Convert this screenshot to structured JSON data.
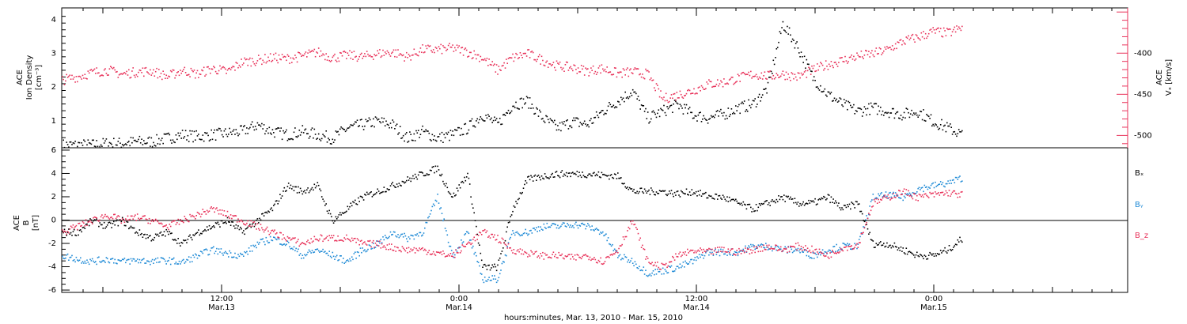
{
  "colors": {
    "density": "#000000",
    "vx": "#e8325a",
    "bx": "#000000",
    "by": "#1f8ad6",
    "bz": "#e8325a"
  },
  "chart_data": [
    {
      "type": "scatter",
      "panel": "top",
      "left_axis": {
        "label_line1": "ACE",
        "label_line2": "Ion Density",
        "unit": "[cm⁻³]",
        "ylim": [
          0.2,
          4.35
        ],
        "ticks": [
          "1",
          "2",
          "3",
          "4"
        ]
      },
      "right_axis": {
        "label_line1": "ACE",
        "label_line2": "Vₓ [km/s]",
        "ylim": [
          -515,
          -345
        ],
        "ticks": [
          "-400",
          "-450",
          "-500"
        ]
      },
      "series": [
        {
          "name": "Ion Density",
          "x": [
            0,
            1,
            2,
            3,
            4,
            5,
            6,
            7,
            8,
            9,
            10,
            11,
            12,
            13,
            14,
            15,
            16,
            17,
            18,
            19,
            20,
            21,
            22,
            23,
            24,
            25,
            26,
            27,
            28,
            29,
            30,
            31,
            32,
            33,
            34,
            35,
            36,
            37,
            38,
            39,
            40,
            41,
            42,
            43,
            44,
            45,
            46,
            47,
            48,
            49,
            50,
            51,
            52,
            53,
            54,
            55,
            56,
            57,
            58,
            59,
            60
          ],
          "y": [
            0.3,
            0.3,
            0.3,
            0.35,
            0.35,
            0.4,
            0.4,
            0.5,
            0.6,
            0.55,
            0.6,
            0.65,
            0.7,
            0.9,
            0.7,
            0.6,
            0.7,
            0.6,
            0.5,
            0.8,
            0.9,
            1.0,
            0.9,
            0.5,
            0.7,
            0.5,
            0.6,
            0.8,
            1.2,
            0.9,
            1.5,
            1.6,
            1.1,
            0.8,
            1.0,
            0.9,
            1.3,
            1.6,
            1.9,
            1.1,
            1.3,
            1.5,
            1.2,
            1.1,
            1.2,
            1.4,
            1.5,
            2.0,
            3.9,
            3.2,
            2.3,
            1.8,
            1.5,
            1.3,
            1.4,
            1.3,
            1.2,
            1.3,
            1.0,
            0.8,
            0.6
          ]
        },
        {
          "name": "Vx",
          "x": [
            0,
            1,
            2,
            3,
            4,
            5,
            6,
            7,
            8,
            9,
            10,
            11,
            12,
            13,
            14,
            15,
            16,
            17,
            18,
            19,
            20,
            21,
            22,
            23,
            24,
            25,
            26,
            27,
            28,
            29,
            30,
            31,
            32,
            33,
            34,
            35,
            36,
            37,
            38,
            39,
            40,
            41,
            42,
            43,
            44,
            45,
            46,
            47,
            48,
            49,
            50,
            51,
            52,
            53,
            54,
            55,
            56,
            57,
            58,
            59,
            60
          ],
          "y": [
            -432,
            -428,
            -423,
            -420,
            -425,
            -422,
            -421,
            -428,
            -420,
            -425,
            -418,
            -422,
            -410,
            -408,
            -405,
            -406,
            -403,
            -398,
            -405,
            -402,
            -404,
            -400,
            -398,
            -404,
            -395,
            -395,
            -393,
            -398,
            -405,
            -420,
            -405,
            -400,
            -408,
            -415,
            -417,
            -421,
            -418,
            -424,
            -422,
            -425,
            -455,
            -450,
            -445,
            -437,
            -435,
            -430,
            -425,
            -427,
            -425,
            -428,
            -420,
            -413,
            -408,
            -403,
            -400,
            -395,
            -385,
            -380,
            -373,
            -375,
            -368
          ]
        }
      ]
    },
    {
      "type": "scatter",
      "panel": "bottom",
      "left_axis": {
        "label_line1": "ACE",
        "label_line2": "B",
        "unit": "[nT]",
        "ylim": [
          -6.2,
          6.2
        ],
        "ticks": [
          "6",
          "4",
          "2",
          "0",
          "-2",
          "-4",
          "-6"
        ]
      },
      "legend": [
        {
          "name": "Bₓ",
          "key": "bx"
        },
        {
          "name": "Bᵧ",
          "key": "by"
        },
        {
          "name": "B_z",
          "key": "bz"
        }
      ],
      "series": [
        {
          "name": "Bx",
          "x": [
            0,
            1,
            2,
            3,
            4,
            5,
            6,
            7,
            8,
            9,
            10,
            11,
            12,
            13,
            14,
            15,
            16,
            17,
            18,
            19,
            20,
            21,
            22,
            23,
            24,
            25,
            26,
            27,
            28,
            29,
            30,
            31,
            32,
            33,
            34,
            35,
            36,
            37,
            38,
            39,
            40,
            41,
            42,
            43,
            44,
            45,
            46,
            47,
            48,
            49,
            50,
            51,
            52,
            53,
            54,
            55,
            56,
            57,
            58,
            59,
            60
          ],
          "y": [
            -1,
            -1,
            0,
            -0.5,
            0,
            -1,
            -1.5,
            -1,
            -2,
            -1,
            -0.5,
            0,
            -1,
            0,
            1,
            3,
            2.5,
            3,
            0,
            1,
            2,
            2.5,
            3,
            3.5,
            4,
            4.5,
            2,
            4,
            -4,
            -4,
            1,
            3.5,
            3.8,
            4,
            4,
            4,
            3.9,
            3.8,
            2.5,
            2.5,
            2.5,
            2.3,
            2.5,
            2.1,
            2,
            1.5,
            1,
            1.5,
            2,
            1.5,
            1.5,
            2,
            1,
            1.5,
            -2,
            -2,
            -2.5,
            -3,
            -3,
            -2.5,
            -1.5
          ]
        },
        {
          "name": "By",
          "x": [
            0,
            1,
            2,
            3,
            4,
            5,
            6,
            7,
            8,
            9,
            10,
            11,
            12,
            13,
            14,
            15,
            16,
            17,
            18,
            19,
            20,
            21,
            22,
            23,
            24,
            25,
            26,
            27,
            28,
            29,
            30,
            31,
            32,
            33,
            34,
            35,
            36,
            37,
            38,
            39,
            40,
            41,
            42,
            43,
            44,
            45,
            46,
            47,
            48,
            49,
            50,
            51,
            52,
            53,
            54,
            55,
            56,
            57,
            58,
            59,
            60
          ],
          "y": [
            -3,
            -3.3,
            -3.5,
            -3.3,
            -3.5,
            -3.4,
            -3.5,
            -3.4,
            -3.6,
            -3,
            -2.5,
            -2.8,
            -3,
            -2,
            -1.5,
            -2,
            -3,
            -2.5,
            -3,
            -3.5,
            -2.5,
            -2,
            -1,
            -1.5,
            -1,
            2,
            -3,
            -1,
            -5,
            -5,
            -1,
            -1,
            -0.5,
            -0.5,
            -0.3,
            -0.5,
            -1,
            -3,
            -3.5,
            -4.5,
            -4.3,
            -4,
            -3.5,
            -2.7,
            -2.7,
            -2.7,
            -2.2,
            -2.2,
            -2.5,
            -2.5,
            -3,
            -2.5,
            -2.2,
            -2.2,
            2,
            2.2,
            2,
            2.7,
            3,
            3.2,
            3.7
          ]
        },
        {
          "name": "Bz",
          "x": [
            0,
            1,
            2,
            3,
            4,
            5,
            6,
            7,
            8,
            9,
            10,
            11,
            12,
            13,
            14,
            15,
            16,
            17,
            18,
            19,
            20,
            21,
            22,
            23,
            24,
            25,
            26,
            27,
            28,
            29,
            30,
            31,
            32,
            33,
            34,
            35,
            36,
            37,
            38,
            39,
            40,
            41,
            42,
            43,
            44,
            45,
            46,
            47,
            48,
            49,
            50,
            51,
            52,
            53,
            54,
            55,
            56,
            57,
            58,
            59,
            60
          ],
          "y": [
            -1,
            -0.5,
            0,
            0.5,
            0,
            0.3,
            0,
            -0.5,
            0,
            0.5,
            1,
            0.5,
            0,
            -0.5,
            -1,
            -1.5,
            -2,
            -1.5,
            -1.5,
            -1.5,
            -2,
            -2,
            -2.3,
            -2.5,
            -2.5,
            -2.8,
            -3,
            -2,
            -1,
            -1.5,
            -2.5,
            -2.8,
            -3,
            -3,
            -3.2,
            -3,
            -3.5,
            -2.5,
            0,
            -3.5,
            -4,
            -3,
            -2.6,
            -2.7,
            -2.5,
            -2.7,
            -2.5,
            -2.2,
            -2.5,
            -2.2,
            -2.5,
            -3,
            -2.3,
            -2.1,
            1.5,
            2,
            2.5,
            2,
            2.2,
            2.4,
            2.2
          ]
        }
      ]
    }
  ],
  "x_axis": {
    "time_labels": [
      "12:00",
      "0:00",
      "12:00",
      "0:00"
    ],
    "date_labels": [
      "Mar.13",
      "Mar.14",
      "Mar.14",
      "Mar.15"
    ],
    "title": "hours:minutes, Mar. 13, 2010 - Mar. 15, 2010"
  }
}
